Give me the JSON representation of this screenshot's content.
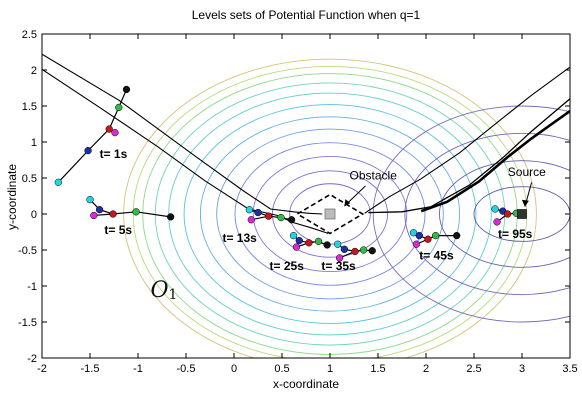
{
  "chart_data": {
    "type": "line",
    "title": "Levels sets of Potential Function when q=1",
    "xlabel": "x-coordinate",
    "ylabel": "y-coordinate",
    "xlim": [
      -2,
      3.5
    ],
    "ylim": [
      -2,
      2.5
    ],
    "xticks": [
      -2,
      -1.5,
      -1,
      -0.5,
      0,
      0.5,
      1,
      1.5,
      2,
      2.5,
      3,
      3.5
    ],
    "yticks": [
      -2,
      -1.5,
      -1,
      -0.5,
      0,
      0.5,
      1,
      1.5,
      2,
      2.5
    ],
    "xtick_labels": [
      "-2",
      "-1.5",
      "-1",
      "-0.5",
      "0",
      "0.5",
      "1",
      "1.5",
      "2",
      "2.5",
      "3",
      "3.5"
    ],
    "ytick_labels": [
      "-2",
      "-1.5",
      "-1",
      "-0.5",
      "0",
      "0.5",
      "1",
      "1.5",
      "2",
      "2.5"
    ],
    "grid": false,
    "obstacle": {
      "label": "Obstacle",
      "center": [
        1.0,
        0.0
      ],
      "diamond_vertices": [
        [
          0.66,
          0.0
        ],
        [
          1.0,
          0.27
        ],
        [
          1.34,
          0.0
        ],
        [
          1.0,
          -0.27
        ]
      ],
      "marker_color": "#bbbbbb"
    },
    "source": {
      "label": "Source",
      "position": [
        3.0,
        0.0
      ],
      "marker_color": "#333333"
    },
    "region_label": {
      "main": "O",
      "sub": "1",
      "position": [
        -0.87,
        -1.15
      ]
    },
    "left_contours": [
      {
        "radius": 2.15,
        "color": "#d4c47a"
      },
      {
        "radius": 2.05,
        "color": "#b9dc78"
      },
      {
        "radius": 1.95,
        "color": "#8bdb88"
      },
      {
        "radius": 1.82,
        "color": "#6ed7b3"
      },
      {
        "radius": 1.68,
        "color": "#5dcfd0"
      },
      {
        "radius": 1.52,
        "color": "#56c3e0"
      },
      {
        "radius": 1.35,
        "color": "#5fb1e6"
      },
      {
        "radius": 1.18,
        "color": "#6a9de6"
      },
      {
        "radius": 0.99,
        "color": "#7488e2"
      },
      {
        "radius": 0.8,
        "color": "#7d7bd8"
      },
      {
        "radius": 0.6,
        "color": "#7f6fcf"
      },
      {
        "radius": 0.42,
        "color": "#7e66c6"
      }
    ],
    "right_contours": [
      {
        "rx": 0.5,
        "ry": 0.38,
        "color": "#5a5aa8"
      },
      {
        "rx": 0.86,
        "ry": 0.74,
        "color": "#6560b0"
      },
      {
        "rx": 1.22,
        "ry": 1.12,
        "color": "#6f66b8"
      },
      {
        "rx": 1.55,
        "ry": 1.5,
        "color": "#776cbe"
      }
    ],
    "black_paths": [
      {
        "name": "upper-left-path",
        "width": 1.1,
        "points": [
          [
            -2.0,
            2.22
          ],
          [
            -1.2,
            1.58
          ],
          [
            -0.4,
            0.8
          ],
          [
            0.1,
            0.32
          ],
          [
            0.38,
            0.07
          ],
          [
            0.62,
            0.03
          ],
          [
            0.78,
            0.01
          ],
          [
            0.92,
            0.0
          ]
        ]
      },
      {
        "name": "lower-left-path",
        "width": 1.1,
        "points": [
          [
            -2.0,
            2.01
          ],
          [
            -1.4,
            1.48
          ],
          [
            -0.8,
            0.94
          ],
          [
            -0.3,
            0.46
          ],
          [
            0.15,
            0.07
          ],
          [
            0.45,
            -0.02
          ],
          [
            0.62,
            -0.12
          ],
          [
            0.8,
            -0.19
          ],
          [
            0.98,
            -0.27
          ]
        ]
      },
      {
        "name": "outer-right-path",
        "width": 1.1,
        "points": [
          [
            1.36,
            0.01
          ],
          [
            1.62,
            0.24
          ],
          [
            1.95,
            0.49
          ],
          [
            2.35,
            0.85
          ],
          [
            2.75,
            1.28
          ],
          [
            3.1,
            1.65
          ],
          [
            3.5,
            2.04
          ]
        ]
      },
      {
        "name": "thick-right-path",
        "width": 2.6,
        "points": [
          [
            1.95,
            0.04
          ],
          [
            2.22,
            0.17
          ],
          [
            2.55,
            0.45
          ],
          [
            2.85,
            0.79
          ],
          [
            3.1,
            1.05
          ],
          [
            3.5,
            1.43
          ]
        ]
      },
      {
        "name": "mid-right-path",
        "width": 1.3,
        "points": [
          [
            1.4,
            0.02
          ],
          [
            1.75,
            0.03
          ],
          [
            2.05,
            0.1
          ],
          [
            2.45,
            0.4
          ],
          [
            2.8,
            0.78
          ],
          [
            3.1,
            1.15
          ],
          [
            3.5,
            1.6
          ]
        ]
      }
    ],
    "swarm_snapshots": [
      {
        "label": "t= 1s",
        "label_pos": [
          -1.4,
          0.78
        ],
        "nodes": [
          [
            -1.83,
            0.44
          ],
          [
            -1.52,
            0.88
          ],
          [
            -1.3,
            1.18
          ],
          [
            -1.2,
            1.48
          ],
          [
            -1.12,
            1.73
          ]
        ],
        "extra": [
          -1.24,
          1.13
        ]
      },
      {
        "label": "t= 5s",
        "label_pos": [
          -1.35,
          -0.28
        ],
        "nodes": [
          [
            -1.5,
            0.2
          ],
          [
            -1.4,
            0.06
          ],
          [
            -1.26,
            0.0
          ],
          [
            -1.02,
            0.03
          ],
          [
            -0.66,
            -0.04
          ]
        ],
        "extra": [
          -1.46,
          -0.02
        ]
      },
      {
        "label": "t= 13s",
        "label_pos": [
          -0.12,
          -0.39
        ],
        "nodes": [
          [
            0.16,
            0.06
          ],
          [
            0.25,
            0.02
          ],
          [
            0.36,
            -0.03
          ],
          [
            0.49,
            -0.05
          ],
          [
            0.6,
            -0.08
          ]
        ],
        "extra": [
          0.18,
          -0.08
        ]
      },
      {
        "label": "t= 25s",
        "label_pos": [
          0.37,
          -0.78
        ],
        "nodes": [
          [
            0.62,
            -0.3
          ],
          [
            0.68,
            -0.37
          ],
          [
            0.78,
            -0.4
          ],
          [
            0.88,
            -0.38
          ],
          [
            0.97,
            -0.43
          ]
        ],
        "extra": [
          0.65,
          -0.46
        ]
      },
      {
        "label": "t= 35s",
        "label_pos": [
          0.91,
          -0.78
        ],
        "nodes": [
          [
            1.08,
            -0.42
          ],
          [
            1.15,
            -0.49
          ],
          [
            1.26,
            -0.52
          ],
          [
            1.35,
            -0.5
          ],
          [
            1.44,
            -0.51
          ]
        ],
        "extra": [
          1.1,
          -0.61
        ]
      },
      {
        "label": "t= 45s",
        "label_pos": [
          1.93,
          -0.63
        ],
        "nodes": [
          [
            1.87,
            -0.26
          ],
          [
            1.93,
            -0.3
          ],
          [
            2.02,
            -0.35
          ],
          [
            2.1,
            -0.3
          ],
          [
            2.32,
            -0.3
          ]
        ],
        "extra": [
          1.9,
          -0.42
        ]
      },
      {
        "label": "t= 95s",
        "label_pos": [
          2.75,
          -0.33
        ],
        "nodes": [
          [
            2.72,
            0.07
          ],
          [
            2.8,
            0.04
          ],
          [
            2.85,
            0.0
          ],
          [
            2.94,
            0.01
          ],
          [
            3.0,
            0.0
          ]
        ],
        "extra": [
          2.74,
          -0.11
        ]
      }
    ],
    "node_colors": [
      "#22d4e0",
      "#1a2fa8",
      "#c4171f",
      "#35b846",
      "#111111"
    ],
    "extra_color": "#d62bd6"
  }
}
